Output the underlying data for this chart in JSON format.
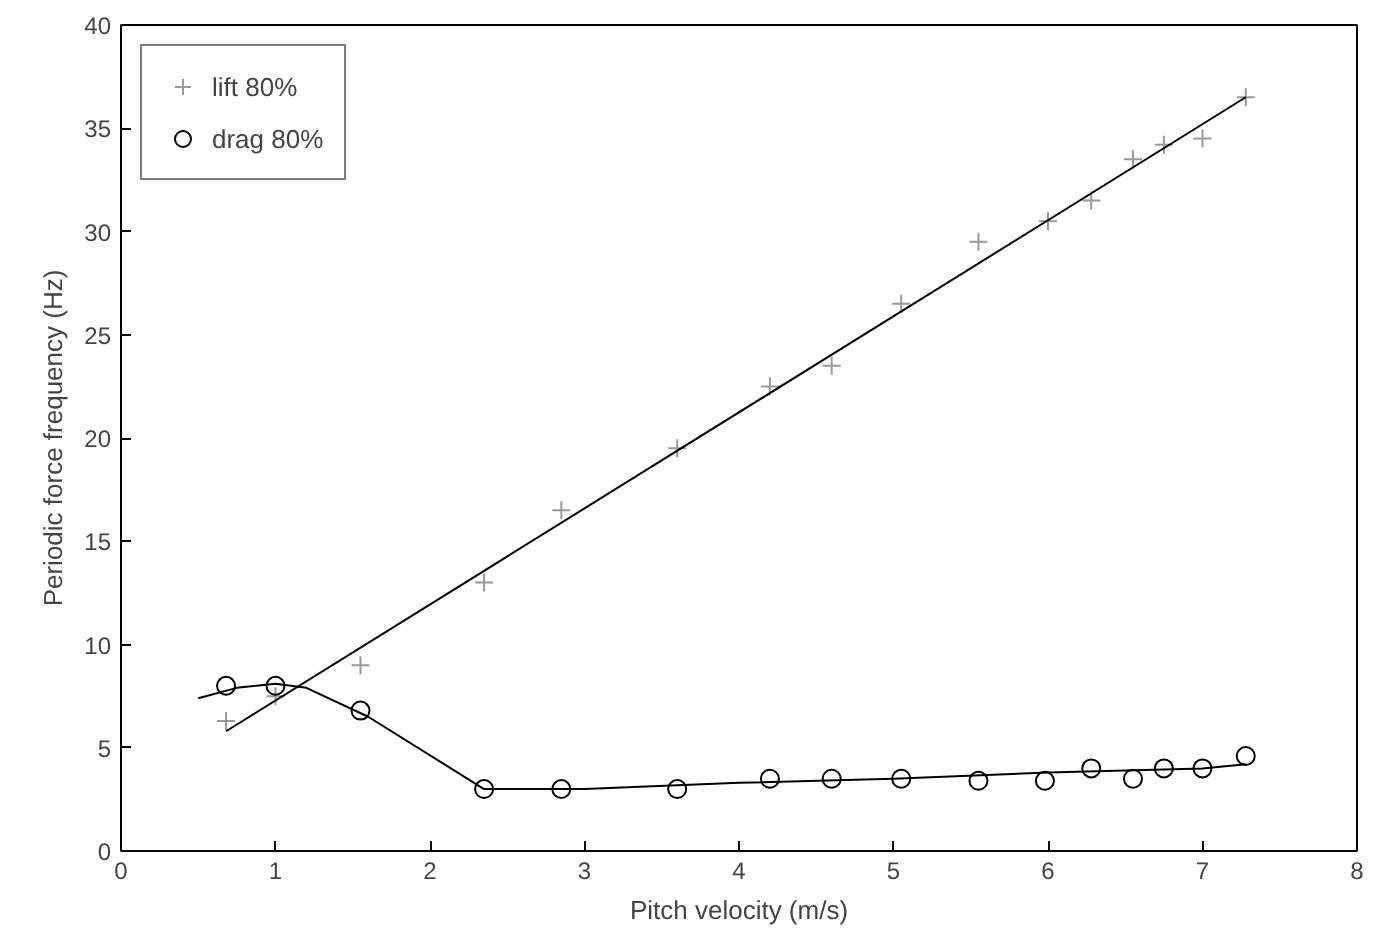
{
  "chart_data": {
    "type": "scatter",
    "xlabel": "Pitch velocity (m/s)",
    "ylabel": "Periodic force frequency (Hz)",
    "xlim": [
      0,
      8
    ],
    "ylim": [
      0,
      40
    ],
    "xticks": [
      0,
      1,
      2,
      3,
      4,
      5,
      6,
      7,
      8
    ],
    "yticks": [
      0,
      5,
      10,
      15,
      20,
      25,
      30,
      35,
      40
    ],
    "grid": false,
    "legend": "top left",
    "series": [
      {
        "name": "lift 80%",
        "marker": "cross",
        "color": "#999999",
        "x": [
          0.68,
          1.0,
          1.55,
          2.35,
          2.85,
          3.6,
          4.2,
          4.6,
          5.05,
          5.55,
          6.0,
          6.28,
          6.55,
          6.75,
          7.0,
          7.28
        ],
        "values": [
          6.3,
          7.5,
          9.0,
          13.0,
          16.5,
          19.5,
          22.5,
          23.5,
          26.5,
          29.5,
          30.5,
          31.5,
          33.5,
          34.2,
          34.5,
          36.5
        ]
      },
      {
        "name": "drag 80%",
        "marker": "circle",
        "color": "#000000",
        "x": [
          0.68,
          1.0,
          1.55,
          2.35,
          2.85,
          3.6,
          4.2,
          4.6,
          5.05,
          5.55,
          5.98,
          6.28,
          6.55,
          6.75,
          7.0,
          7.28
        ],
        "values": [
          8.0,
          8.0,
          6.8,
          3.0,
          3.0,
          3.0,
          3.5,
          3.5,
          3.5,
          3.4,
          3.4,
          4.0,
          3.5,
          4.0,
          4.0,
          4.6
        ]
      },
      {
        "type": "line",
        "color": "#000000",
        "x": [
          0.68,
          7.28
        ],
        "values": [
          5.8,
          36.5
        ]
      },
      {
        "type": "line",
        "color": "#000000",
        "x": [
          0.5,
          0.75,
          1.0,
          1.2,
          1.6,
          2.35,
          3.0,
          4.0,
          5.0,
          6.0,
          7.0,
          7.28
        ],
        "values": [
          7.4,
          7.9,
          8.1,
          7.9,
          6.5,
          3.0,
          3.0,
          3.3,
          3.5,
          3.8,
          4.0,
          4.2
        ]
      }
    ]
  }
}
